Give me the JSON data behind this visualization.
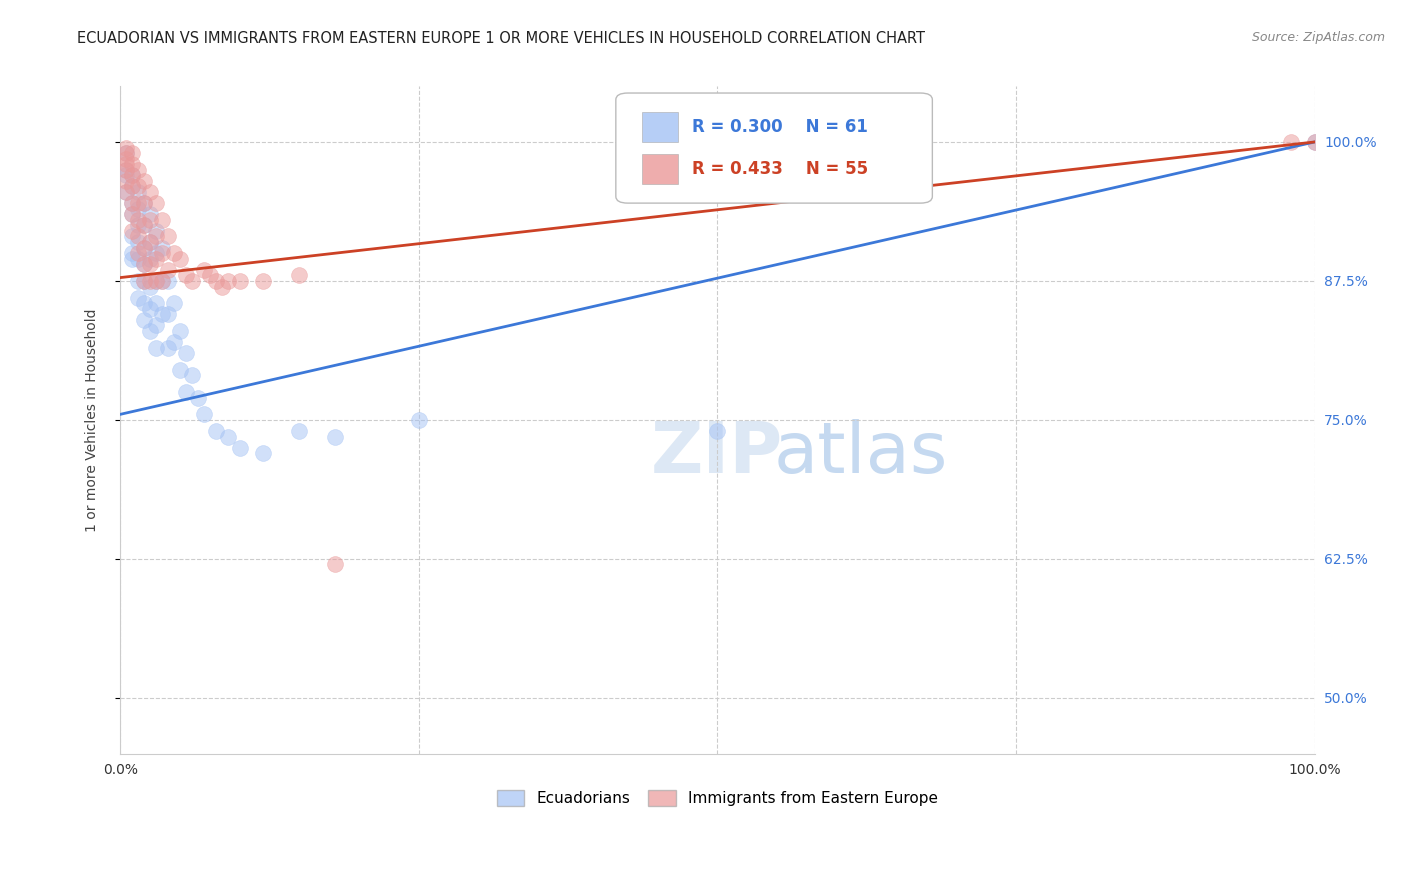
{
  "title": "ECUADORIAN VS IMMIGRANTS FROM EASTERN EUROPE 1 OR MORE VEHICLES IN HOUSEHOLD CORRELATION CHART",
  "source": "Source: ZipAtlas.com",
  "ylabel": "1 or more Vehicles in Household",
  "xlim": [
    0.0,
    1.0
  ],
  "ylim": [
    0.45,
    1.05
  ],
  "yticks": [
    0.5,
    0.625,
    0.75,
    0.875,
    1.0
  ],
  "ytick_labels": [
    "50.0%",
    "62.5%",
    "75.0%",
    "87.5%",
    "100.0%"
  ],
  "xticks": [
    0.0,
    0.25,
    0.5,
    0.75,
    1.0
  ],
  "xtick_labels": [
    "0.0%",
    "",
    "",
    "",
    "100.0%"
  ],
  "blue_R": 0.3,
  "blue_N": 61,
  "pink_R": 0.433,
  "pink_N": 55,
  "blue_color": "#a4c2f4",
  "pink_color": "#ea9999",
  "blue_line_color": "#3c78d8",
  "pink_line_color": "#cc4125",
  "blue_intercept": 0.755,
  "blue_slope": 0.245,
  "pink_intercept": 0.878,
  "pink_slope": 0.122,
  "blue_scatter": [
    [
      0.005,
      0.97
    ],
    [
      0.005,
      0.955
    ],
    [
      0.005,
      0.99
    ],
    [
      0.005,
      0.975
    ],
    [
      0.01,
      0.97
    ],
    [
      0.01,
      0.945
    ],
    [
      0.01,
      0.96
    ],
    [
      0.01,
      0.935
    ],
    [
      0.01,
      0.915
    ],
    [
      0.01,
      0.9
    ],
    [
      0.01,
      0.895
    ],
    [
      0.015,
      0.955
    ],
    [
      0.015,
      0.94
    ],
    [
      0.015,
      0.925
    ],
    [
      0.015,
      0.91
    ],
    [
      0.015,
      0.895
    ],
    [
      0.015,
      0.875
    ],
    [
      0.015,
      0.86
    ],
    [
      0.02,
      0.945
    ],
    [
      0.02,
      0.925
    ],
    [
      0.02,
      0.905
    ],
    [
      0.02,
      0.89
    ],
    [
      0.02,
      0.875
    ],
    [
      0.02,
      0.855
    ],
    [
      0.02,
      0.84
    ],
    [
      0.025,
      0.935
    ],
    [
      0.025,
      0.91
    ],
    [
      0.025,
      0.895
    ],
    [
      0.025,
      0.87
    ],
    [
      0.025,
      0.85
    ],
    [
      0.025,
      0.83
    ],
    [
      0.03,
      0.92
    ],
    [
      0.03,
      0.9
    ],
    [
      0.03,
      0.875
    ],
    [
      0.03,
      0.855
    ],
    [
      0.03,
      0.835
    ],
    [
      0.03,
      0.815
    ],
    [
      0.035,
      0.905
    ],
    [
      0.035,
      0.875
    ],
    [
      0.035,
      0.845
    ],
    [
      0.04,
      0.875
    ],
    [
      0.04,
      0.845
    ],
    [
      0.04,
      0.815
    ],
    [
      0.045,
      0.855
    ],
    [
      0.045,
      0.82
    ],
    [
      0.05,
      0.83
    ],
    [
      0.05,
      0.795
    ],
    [
      0.055,
      0.81
    ],
    [
      0.055,
      0.775
    ],
    [
      0.06,
      0.79
    ],
    [
      0.065,
      0.77
    ],
    [
      0.07,
      0.755
    ],
    [
      0.08,
      0.74
    ],
    [
      0.09,
      0.735
    ],
    [
      0.1,
      0.725
    ],
    [
      0.12,
      0.72
    ],
    [
      0.15,
      0.74
    ],
    [
      0.18,
      0.735
    ],
    [
      0.25,
      0.75
    ],
    [
      0.5,
      0.74
    ],
    [
      1.0,
      1.0
    ]
  ],
  "pink_scatter": [
    [
      0.005,
      0.995
    ],
    [
      0.005,
      0.99
    ],
    [
      0.005,
      0.985
    ],
    [
      0.005,
      0.98
    ],
    [
      0.005,
      0.975
    ],
    [
      0.005,
      0.965
    ],
    [
      0.005,
      0.955
    ],
    [
      0.01,
      0.99
    ],
    [
      0.01,
      0.98
    ],
    [
      0.01,
      0.97
    ],
    [
      0.01,
      0.96
    ],
    [
      0.01,
      0.945
    ],
    [
      0.01,
      0.935
    ],
    [
      0.01,
      0.92
    ],
    [
      0.015,
      0.975
    ],
    [
      0.015,
      0.96
    ],
    [
      0.015,
      0.945
    ],
    [
      0.015,
      0.93
    ],
    [
      0.015,
      0.915
    ],
    [
      0.015,
      0.9
    ],
    [
      0.02,
      0.965
    ],
    [
      0.02,
      0.945
    ],
    [
      0.02,
      0.925
    ],
    [
      0.02,
      0.905
    ],
    [
      0.02,
      0.89
    ],
    [
      0.02,
      0.875
    ],
    [
      0.025,
      0.955
    ],
    [
      0.025,
      0.93
    ],
    [
      0.025,
      0.91
    ],
    [
      0.025,
      0.89
    ],
    [
      0.025,
      0.875
    ],
    [
      0.03,
      0.945
    ],
    [
      0.03,
      0.915
    ],
    [
      0.03,
      0.895
    ],
    [
      0.03,
      0.875
    ],
    [
      0.035,
      0.93
    ],
    [
      0.035,
      0.9
    ],
    [
      0.035,
      0.875
    ],
    [
      0.04,
      0.915
    ],
    [
      0.04,
      0.885
    ],
    [
      0.045,
      0.9
    ],
    [
      0.05,
      0.895
    ],
    [
      0.055,
      0.88
    ],
    [
      0.06,
      0.875
    ],
    [
      0.07,
      0.885
    ],
    [
      0.075,
      0.88
    ],
    [
      0.08,
      0.875
    ],
    [
      0.085,
      0.87
    ],
    [
      0.09,
      0.875
    ],
    [
      0.1,
      0.875
    ],
    [
      0.12,
      0.875
    ],
    [
      0.15,
      0.88
    ],
    [
      0.18,
      0.62
    ],
    [
      0.98,
      1.0
    ],
    [
      1.0,
      1.0
    ]
  ],
  "background_color": "#ffffff",
  "grid_color": "#cccccc",
  "title_fontsize": 10.5,
  "label_fontsize": 10,
  "tick_fontsize": 10,
  "source_fontsize": 9
}
